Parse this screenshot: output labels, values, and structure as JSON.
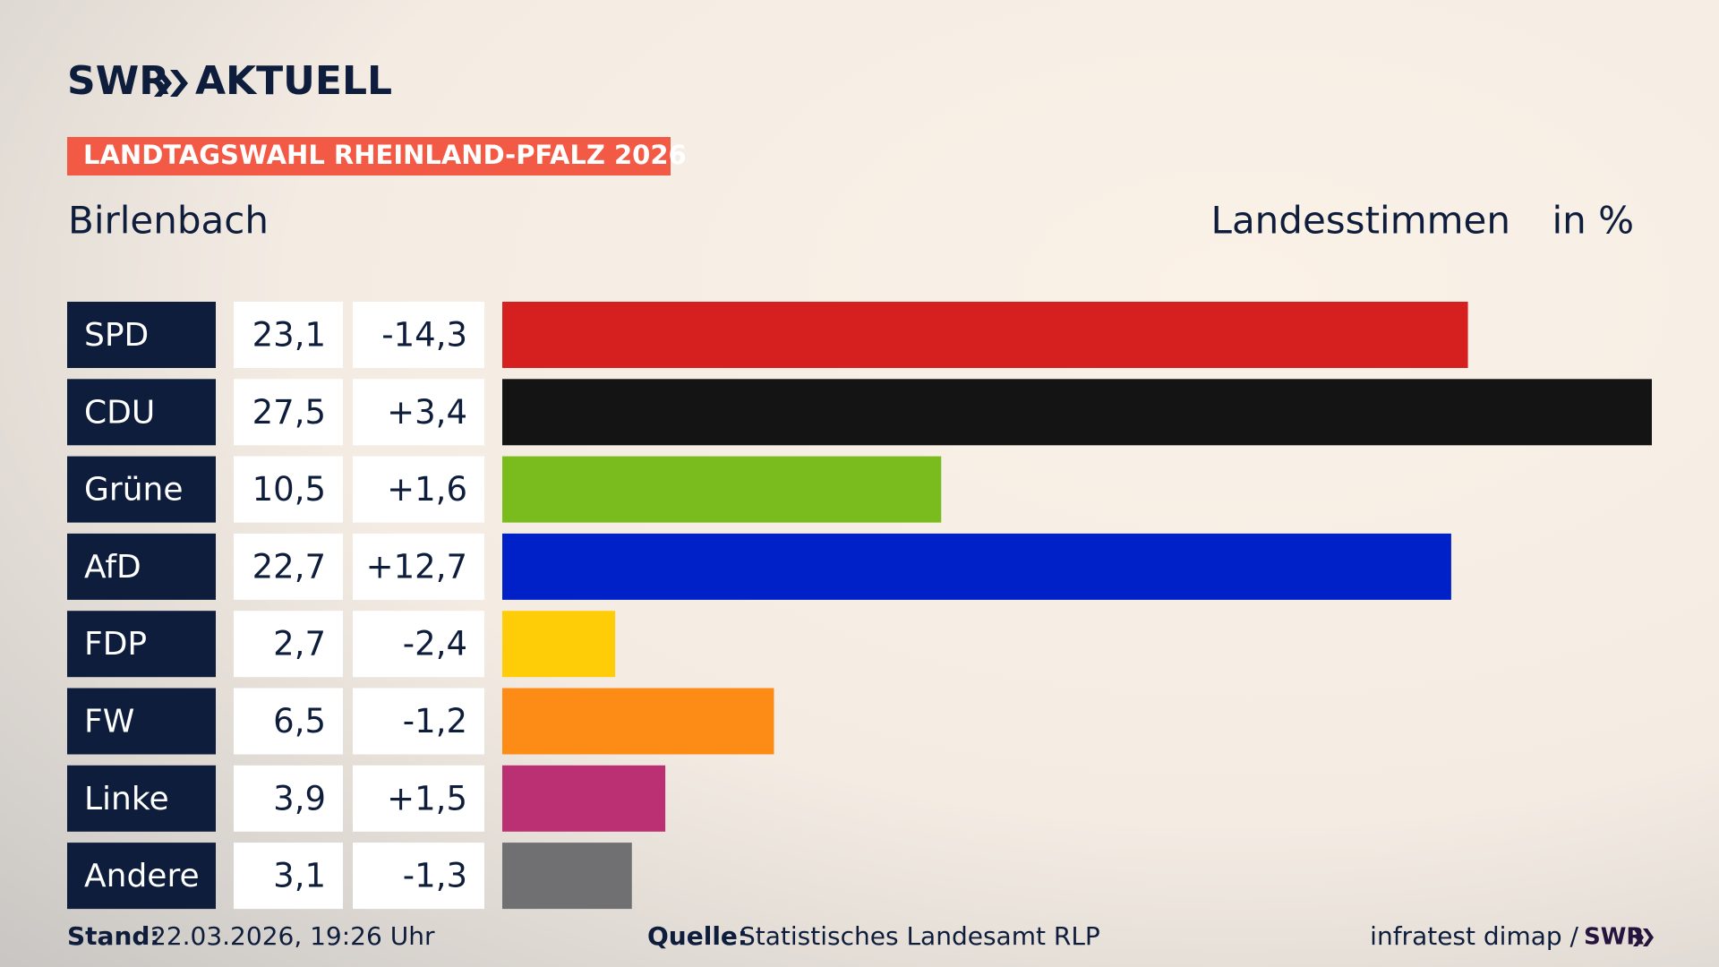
{
  "chart_data": {
    "type": "bar",
    "brand": "SWR",
    "brand_suffix": "AKTUELL",
    "title": "LANDTAGSWAHL RHEINLAND-PFALZ 2026",
    "subtitle": "Birlenbach",
    "value_label": "Landesstimmen",
    "unit_label": "in %",
    "categories": [
      "SPD",
      "CDU",
      "Grüne",
      "AfD",
      "FDP",
      "FW",
      "Linke",
      "Andere"
    ],
    "values": [
      23.1,
      27.5,
      10.5,
      22.7,
      2.7,
      6.5,
      3.9,
      3.1
    ],
    "value_labels": [
      "23,1",
      "27,5",
      "10,5",
      "22,7",
      "2,7",
      "6,5",
      "3,9",
      "3,1"
    ],
    "changes": [
      -14.3,
      3.4,
      1.6,
      12.7,
      -2.4,
      -1.2,
      1.5,
      -1.3
    ],
    "change_labels": [
      "-14,3",
      "+3,4",
      "+1,6",
      "+12,7",
      "-2,4",
      "-1,2",
      "+1,5",
      "-1,3"
    ],
    "colors": [
      "#d61f1f",
      "#141414",
      "#7abc1d",
      "#0021c8",
      "#fecd08",
      "#fd8c17",
      "#bb2f73",
      "#707072"
    ],
    "footer": {
      "stand_label": "Stand:",
      "stand": "22.03.2026, 19:26 Uhr",
      "source_label": "Quelle:",
      "source": "Statistisches Landesamt RLP",
      "credit": "infratest dimap /",
      "credit_brand": "SWR"
    }
  }
}
